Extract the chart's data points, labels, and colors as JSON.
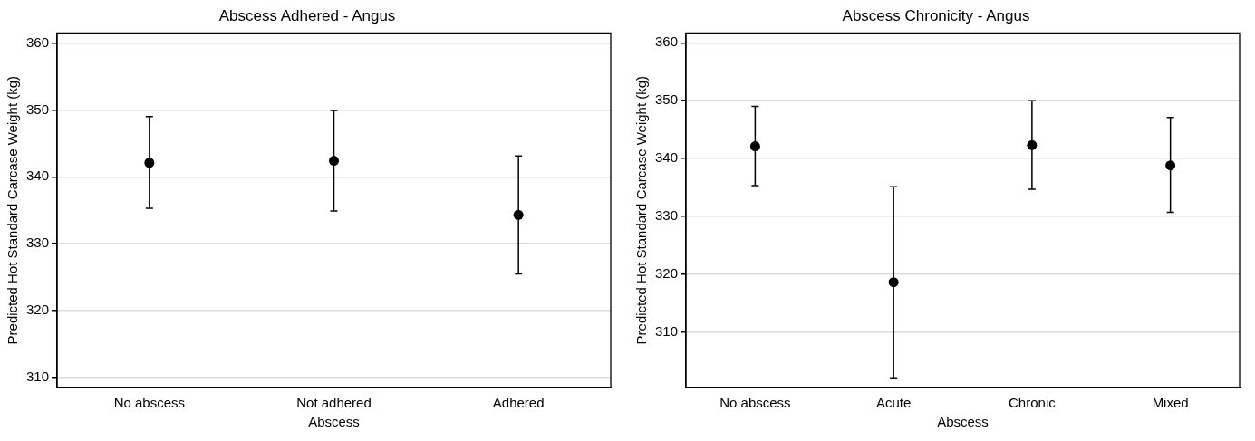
{
  "chart_data": [
    {
      "type": "scatter",
      "title": "Abscess Adhered - Angus",
      "xlabel": "Abscess",
      "ylabel": "Predicted Hot Standard Carcase Weight (kg)",
      "categories": [
        "No abscess",
        "Not adhered",
        "Adhered"
      ],
      "values": [
        342.1,
        342.4,
        334.3
      ],
      "errors": [
        [
          335.3,
          349.0
        ],
        [
          334.9,
          349.9
        ],
        [
          325.5,
          343.1
        ]
      ],
      "color": "#000000",
      "marker": "circle",
      "ylim": [
        308.5,
        361.5
      ],
      "yticks": [
        310,
        320,
        330,
        340,
        350,
        360
      ],
      "grid": "y"
    },
    {
      "type": "scatter",
      "title": "Abscess Chronicity - Angus",
      "xlabel": "Abscess",
      "ylabel": "Predicted Hot Standard Carcase Weight (kg)",
      "categories": [
        "No abscess",
        "Acute",
        "Chronic",
        "Mixed"
      ],
      "values": [
        342.1,
        318.6,
        342.3,
        338.8
      ],
      "errors": [
        [
          335.3,
          349.0
        ],
        [
          302.1,
          335.1
        ],
        [
          334.7,
          350.0
        ],
        [
          330.7,
          347.1
        ]
      ],
      "color": "#000000",
      "marker": "circle",
      "ylim": [
        300.4,
        361.7
      ],
      "yticks": [
        310,
        320,
        330,
        340,
        350,
        360
      ],
      "grid": "y"
    }
  ]
}
